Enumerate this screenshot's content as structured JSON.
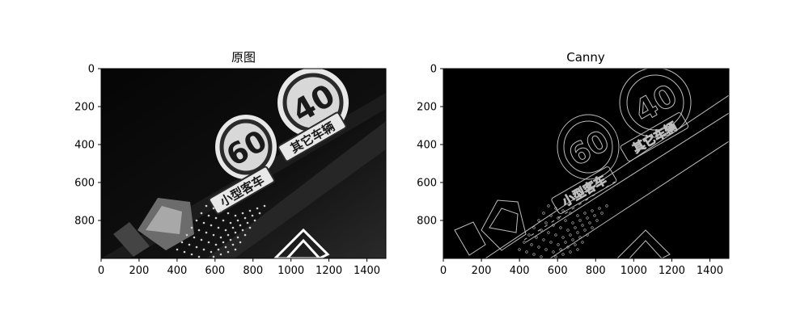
{
  "chart_data": [
    {
      "type": "image",
      "title": "原图",
      "image_kind": "grayscale photo",
      "xlim": [
        0,
        1500
      ],
      "ylim": [
        1000,
        0
      ],
      "xticks": [
        "0",
        "200",
        "400",
        "600",
        "800",
        "1000",
        "1200",
        "1400"
      ],
      "yticks": [
        "0",
        "200",
        "400",
        "600",
        "800"
      ],
      "sign_speed_1": "60",
      "sign_speed_2": "40",
      "sign_text_1": "小型客车",
      "sign_text_2": "其它车辆",
      "colors": {
        "background": "#0b0b0b",
        "sign": "#e8e8e8",
        "ink": "#1a1a1a"
      }
    },
    {
      "type": "image",
      "title": "Canny",
      "image_kind": "edge map",
      "xlim": [
        0,
        1500
      ],
      "ylim": [
        1000,
        0
      ],
      "xticks": [
        "0",
        "200",
        "400",
        "600",
        "800",
        "1000",
        "1200",
        "1400"
      ],
      "yticks": [
        "0",
        "200",
        "400",
        "600",
        "800"
      ],
      "sign_speed_1": "60",
      "sign_speed_2": "40",
      "sign_text_1": "小型客车",
      "sign_text_2": "其它车辆",
      "colors": {
        "background": "#000000",
        "edge": "#bdbdbd"
      }
    }
  ]
}
